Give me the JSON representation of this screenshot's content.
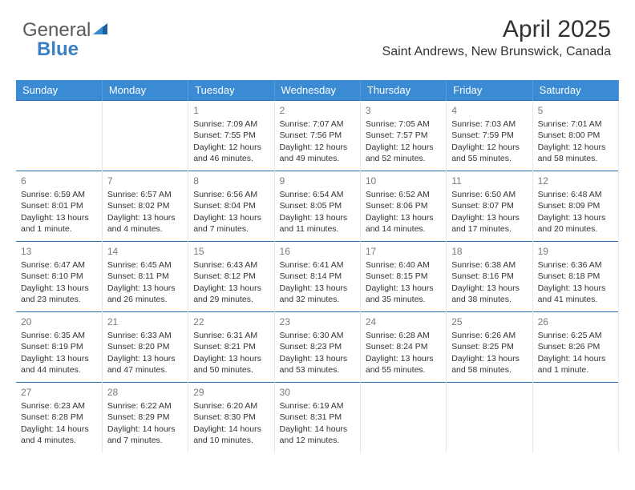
{
  "logo": {
    "text1": "General",
    "text2": "Blue"
  },
  "month_title": "April 2025",
  "location": "Saint Andrews, New Brunswick, Canada",
  "colors": {
    "header_bg": "#3b8bd4",
    "header_text": "#ffffff",
    "week_border": "#2a6dab",
    "daynum": "#7a7a7a",
    "text": "#333333"
  },
  "day_headers": [
    "Sunday",
    "Monday",
    "Tuesday",
    "Wednesday",
    "Thursday",
    "Friday",
    "Saturday"
  ],
  "weeks": [
    [
      {
        "n": "",
        "sr": "",
        "ss": "",
        "dl": ""
      },
      {
        "n": "",
        "sr": "",
        "ss": "",
        "dl": ""
      },
      {
        "n": "1",
        "sr": "Sunrise: 7:09 AM",
        "ss": "Sunset: 7:55 PM",
        "dl": "Daylight: 12 hours and 46 minutes."
      },
      {
        "n": "2",
        "sr": "Sunrise: 7:07 AM",
        "ss": "Sunset: 7:56 PM",
        "dl": "Daylight: 12 hours and 49 minutes."
      },
      {
        "n": "3",
        "sr": "Sunrise: 7:05 AM",
        "ss": "Sunset: 7:57 PM",
        "dl": "Daylight: 12 hours and 52 minutes."
      },
      {
        "n": "4",
        "sr": "Sunrise: 7:03 AM",
        "ss": "Sunset: 7:59 PM",
        "dl": "Daylight: 12 hours and 55 minutes."
      },
      {
        "n": "5",
        "sr": "Sunrise: 7:01 AM",
        "ss": "Sunset: 8:00 PM",
        "dl": "Daylight: 12 hours and 58 minutes."
      }
    ],
    [
      {
        "n": "6",
        "sr": "Sunrise: 6:59 AM",
        "ss": "Sunset: 8:01 PM",
        "dl": "Daylight: 13 hours and 1 minute."
      },
      {
        "n": "7",
        "sr": "Sunrise: 6:57 AM",
        "ss": "Sunset: 8:02 PM",
        "dl": "Daylight: 13 hours and 4 minutes."
      },
      {
        "n": "8",
        "sr": "Sunrise: 6:56 AM",
        "ss": "Sunset: 8:04 PM",
        "dl": "Daylight: 13 hours and 7 minutes."
      },
      {
        "n": "9",
        "sr": "Sunrise: 6:54 AM",
        "ss": "Sunset: 8:05 PM",
        "dl": "Daylight: 13 hours and 11 minutes."
      },
      {
        "n": "10",
        "sr": "Sunrise: 6:52 AM",
        "ss": "Sunset: 8:06 PM",
        "dl": "Daylight: 13 hours and 14 minutes."
      },
      {
        "n": "11",
        "sr": "Sunrise: 6:50 AM",
        "ss": "Sunset: 8:07 PM",
        "dl": "Daylight: 13 hours and 17 minutes."
      },
      {
        "n": "12",
        "sr": "Sunrise: 6:48 AM",
        "ss": "Sunset: 8:09 PM",
        "dl": "Daylight: 13 hours and 20 minutes."
      }
    ],
    [
      {
        "n": "13",
        "sr": "Sunrise: 6:47 AM",
        "ss": "Sunset: 8:10 PM",
        "dl": "Daylight: 13 hours and 23 minutes."
      },
      {
        "n": "14",
        "sr": "Sunrise: 6:45 AM",
        "ss": "Sunset: 8:11 PM",
        "dl": "Daylight: 13 hours and 26 minutes."
      },
      {
        "n": "15",
        "sr": "Sunrise: 6:43 AM",
        "ss": "Sunset: 8:12 PM",
        "dl": "Daylight: 13 hours and 29 minutes."
      },
      {
        "n": "16",
        "sr": "Sunrise: 6:41 AM",
        "ss": "Sunset: 8:14 PM",
        "dl": "Daylight: 13 hours and 32 minutes."
      },
      {
        "n": "17",
        "sr": "Sunrise: 6:40 AM",
        "ss": "Sunset: 8:15 PM",
        "dl": "Daylight: 13 hours and 35 minutes."
      },
      {
        "n": "18",
        "sr": "Sunrise: 6:38 AM",
        "ss": "Sunset: 8:16 PM",
        "dl": "Daylight: 13 hours and 38 minutes."
      },
      {
        "n": "19",
        "sr": "Sunrise: 6:36 AM",
        "ss": "Sunset: 8:18 PM",
        "dl": "Daylight: 13 hours and 41 minutes."
      }
    ],
    [
      {
        "n": "20",
        "sr": "Sunrise: 6:35 AM",
        "ss": "Sunset: 8:19 PM",
        "dl": "Daylight: 13 hours and 44 minutes."
      },
      {
        "n": "21",
        "sr": "Sunrise: 6:33 AM",
        "ss": "Sunset: 8:20 PM",
        "dl": "Daylight: 13 hours and 47 minutes."
      },
      {
        "n": "22",
        "sr": "Sunrise: 6:31 AM",
        "ss": "Sunset: 8:21 PM",
        "dl": "Daylight: 13 hours and 50 minutes."
      },
      {
        "n": "23",
        "sr": "Sunrise: 6:30 AM",
        "ss": "Sunset: 8:23 PM",
        "dl": "Daylight: 13 hours and 53 minutes."
      },
      {
        "n": "24",
        "sr": "Sunrise: 6:28 AM",
        "ss": "Sunset: 8:24 PM",
        "dl": "Daylight: 13 hours and 55 minutes."
      },
      {
        "n": "25",
        "sr": "Sunrise: 6:26 AM",
        "ss": "Sunset: 8:25 PM",
        "dl": "Daylight: 13 hours and 58 minutes."
      },
      {
        "n": "26",
        "sr": "Sunrise: 6:25 AM",
        "ss": "Sunset: 8:26 PM",
        "dl": "Daylight: 14 hours and 1 minute."
      }
    ],
    [
      {
        "n": "27",
        "sr": "Sunrise: 6:23 AM",
        "ss": "Sunset: 8:28 PM",
        "dl": "Daylight: 14 hours and 4 minutes."
      },
      {
        "n": "28",
        "sr": "Sunrise: 6:22 AM",
        "ss": "Sunset: 8:29 PM",
        "dl": "Daylight: 14 hours and 7 minutes."
      },
      {
        "n": "29",
        "sr": "Sunrise: 6:20 AM",
        "ss": "Sunset: 8:30 PM",
        "dl": "Daylight: 14 hours and 10 minutes."
      },
      {
        "n": "30",
        "sr": "Sunrise: 6:19 AM",
        "ss": "Sunset: 8:31 PM",
        "dl": "Daylight: 14 hours and 12 minutes."
      },
      {
        "n": "",
        "sr": "",
        "ss": "",
        "dl": ""
      },
      {
        "n": "",
        "sr": "",
        "ss": "",
        "dl": ""
      },
      {
        "n": "",
        "sr": "",
        "ss": "",
        "dl": ""
      }
    ]
  ]
}
